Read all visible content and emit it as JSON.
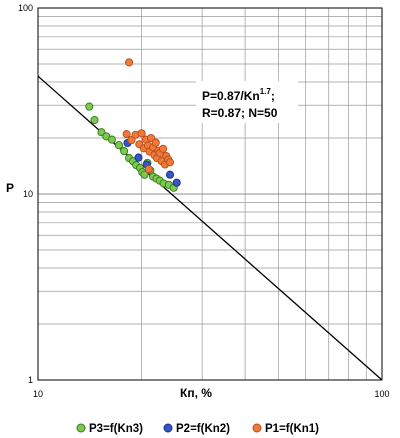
{
  "chart_data": {
    "type": "scatter",
    "title": "",
    "xlabel": "Кп, %",
    "ylabel": "P",
    "xscale": "log",
    "yscale": "log",
    "xlim": [
      10,
      100
    ],
    "ylim": [
      1,
      100
    ],
    "x_tick_labels": [
      "10",
      "100"
    ],
    "y_tick_labels": [
      "1",
      "10",
      "100"
    ],
    "grid": true,
    "legend_position": "bottom",
    "annotation": {
      "line1_main": "P=0.87/Kn",
      "line1_exp": "1.7",
      "line1_end": ";",
      "line2": "R=0.87; N=50"
    },
    "fit": {
      "name": "P=0.87/Kn^1.7",
      "coef": 0.87,
      "exponent": 1.7
    },
    "series": [
      {
        "name": "P3=f(Kn3)",
        "color": "#7ec850",
        "edge": "#2f7a1c",
        "points": [
          [
            14.1,
            29.5
          ],
          [
            14.6,
            25.0
          ],
          [
            15.3,
            21.5
          ],
          [
            15.8,
            20.4
          ],
          [
            16.4,
            19.6
          ],
          [
            17.2,
            18.3
          ],
          [
            17.8,
            17.0
          ],
          [
            18.4,
            15.6
          ],
          [
            18.9,
            15.0
          ],
          [
            19.3,
            14.3
          ],
          [
            19.8,
            13.8
          ],
          [
            20.1,
            13.1
          ],
          [
            20.4,
            12.7
          ],
          [
            20.8,
            14.7
          ],
          [
            21.2,
            13.4
          ],
          [
            21.6,
            12.4
          ],
          [
            22.1,
            12.1
          ],
          [
            22.6,
            11.8
          ],
          [
            23.2,
            11.4
          ],
          [
            24.0,
            11.2
          ],
          [
            24.8,
            10.8
          ]
        ]
      },
      {
        "name": "P2=f(Kn2)",
        "color": "#3556c9",
        "edge": "#1a2e80",
        "points": [
          [
            18.2,
            18.8
          ],
          [
            19.6,
            15.7
          ],
          [
            20.7,
            14.4
          ],
          [
            24.2,
            12.7
          ],
          [
            25.3,
            11.5
          ]
        ]
      },
      {
        "name": "P1=f(Kn1)",
        "color": "#f07a3a",
        "edge": "#b84d1a",
        "points": [
          [
            18.4,
            51.0
          ],
          [
            18.1,
            21.0
          ],
          [
            18.7,
            19.5
          ],
          [
            19.2,
            20.8
          ],
          [
            19.7,
            18.5
          ],
          [
            20.0,
            21.2
          ],
          [
            20.3,
            17.6
          ],
          [
            20.6,
            19.6
          ],
          [
            20.9,
            18.2
          ],
          [
            21.1,
            16.9
          ],
          [
            21.3,
            20.0
          ],
          [
            21.6,
            17.8
          ],
          [
            21.8,
            16.2
          ],
          [
            22.0,
            18.9
          ],
          [
            22.2,
            15.6
          ],
          [
            22.4,
            17.1
          ],
          [
            22.6,
            16.6
          ],
          [
            22.9,
            15.0
          ],
          [
            23.1,
            17.5
          ],
          [
            23.4,
            14.4
          ],
          [
            23.6,
            16.0
          ],
          [
            23.9,
            15.3
          ],
          [
            24.2,
            14.8
          ],
          [
            21.0,
            13.6
          ]
        ]
      }
    ]
  }
}
